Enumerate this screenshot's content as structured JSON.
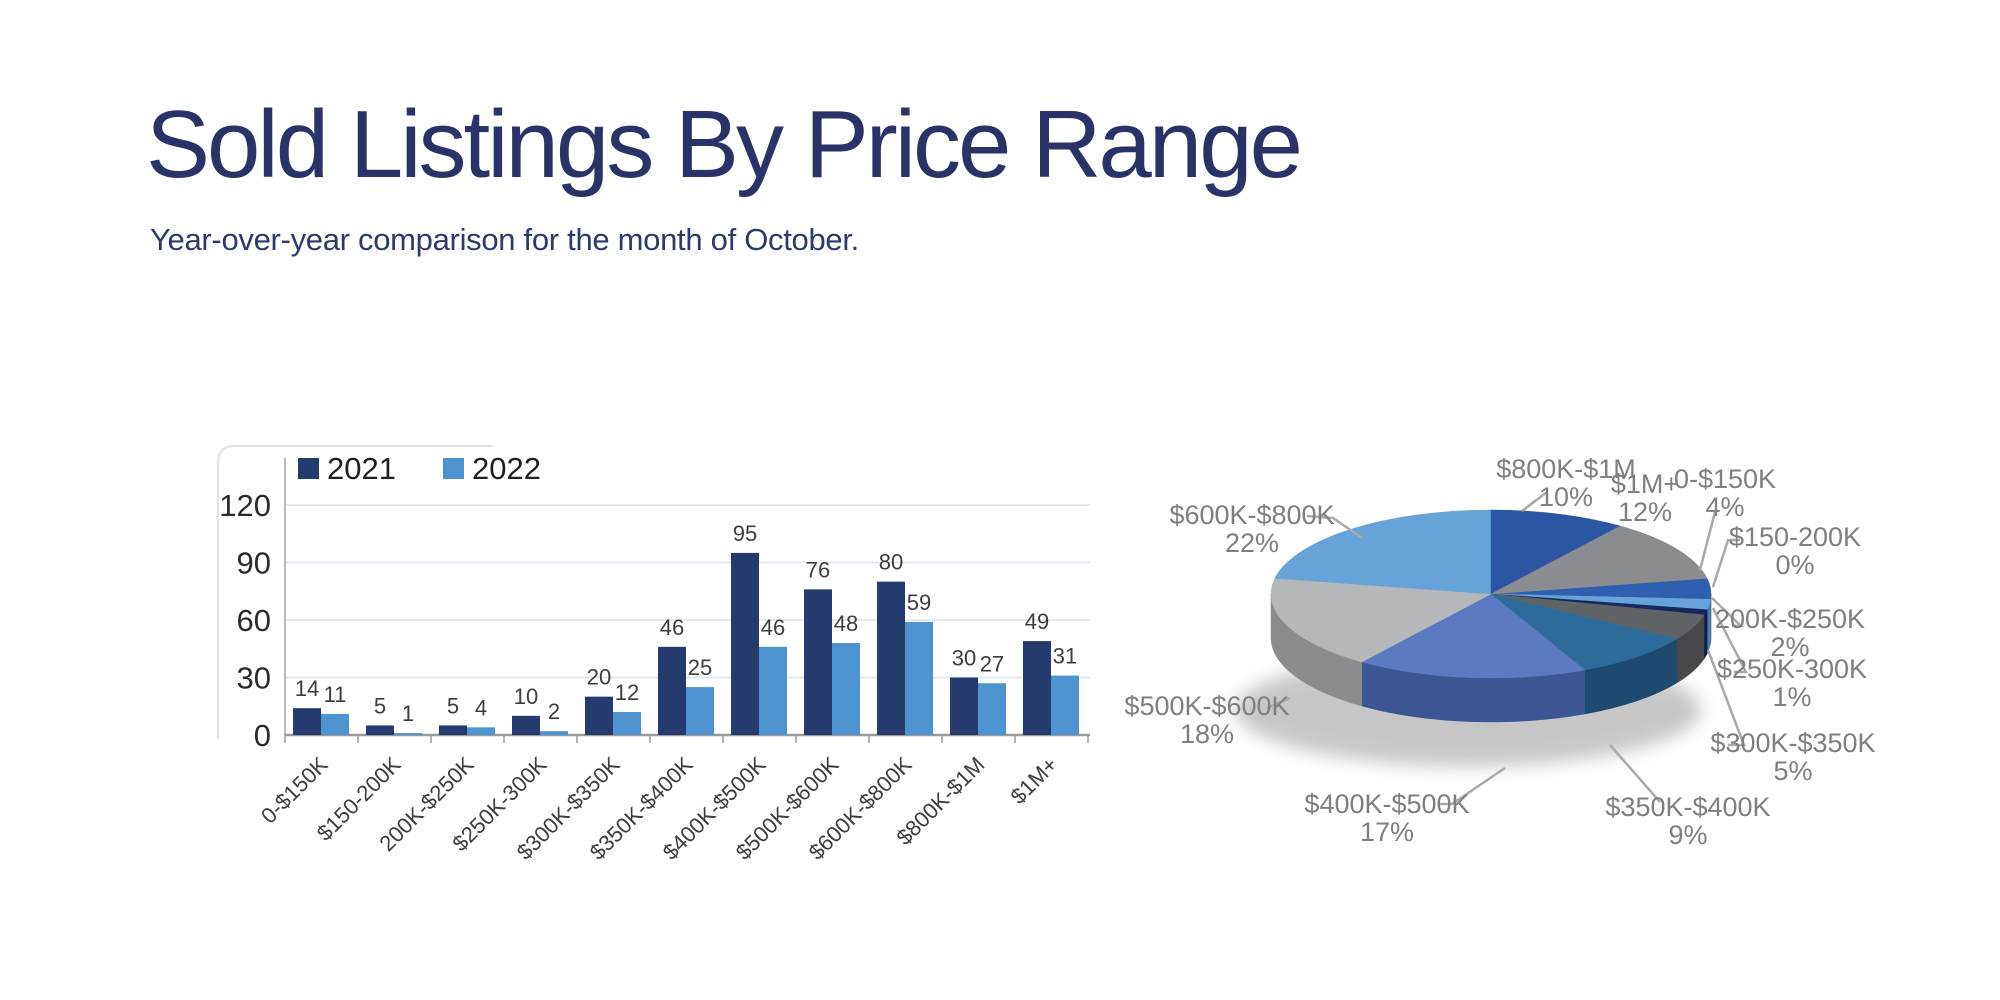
{
  "page": {
    "title": "Sold Listings By Price Range",
    "subtitle": "Year-over-year comparison for the month of October."
  },
  "colors": {
    "title": "#2a3268",
    "subtitle": "#2e3a6e",
    "axis_line": "#a3a3a3",
    "baseline": "#9b9b9b",
    "gridline": "#dce4ef",
    "tick_text": "#2b2b2b",
    "value_text": "#3d3d3d",
    "legend_text": "#1f1f1f",
    "pie_label_text": "#7f7f7f",
    "leader_line": "#a9a9a9",
    "card_border": "#e4e4e4",
    "shadow": "#8f8f8f"
  },
  "chart_data": [
    {
      "type": "bar",
      "title": "",
      "categories": [
        "0-$150K",
        "$150-200K",
        "200K-$250K",
        "$250K-300K",
        "$300K-$350K",
        "$350K-$400K",
        "$400K-$500K",
        "$500K-$600K",
        "$600K-$800K",
        "$800K-$1M",
        "$1M+"
      ],
      "series": [
        {
          "name": "2021",
          "color": "#253a6d",
          "values": [
            14,
            5,
            5,
            10,
            20,
            46,
            95,
            76,
            80,
            30,
            49
          ]
        },
        {
          "name": "2022",
          "color": "#4e94d0",
          "values": [
            11,
            1,
            4,
            2,
            12,
            25,
            46,
            48,
            59,
            27,
            31
          ]
        }
      ],
      "ylim": [
        0,
        140
      ],
      "yticks": [
        0,
        30,
        60,
        90,
        120
      ],
      "grid": true,
      "legend_position": "top-left",
      "value_labels": true
    },
    {
      "type": "pie",
      "style": "3d",
      "start_angle_deg": 79.2,
      "slices": [
        {
          "label": "0-$150K",
          "pct": 4,
          "color": "#2f5fae",
          "side": "#20447f"
        },
        {
          "label": "$150-200K",
          "pct": 0,
          "color": "#9dc3e6",
          "side": "#6f9cc4"
        },
        {
          "label": "200K-$250K",
          "pct": 2,
          "color": "#68a2da",
          "side": "#4a7cab"
        },
        {
          "label": "$250K-300K",
          "pct": 1,
          "color": "#16285c",
          "side": "#0f1c40"
        },
        {
          "label": "$300K-$350K",
          "pct": 5,
          "color": "#606366",
          "side": "#46484b"
        },
        {
          "label": "$350K-$400K",
          "pct": 9,
          "color": "#2d6b99",
          "side": "#1d4a6e"
        },
        {
          "label": "$400K-$500K",
          "pct": 17,
          "color": "#5b7ac2",
          "side": "#3c5593"
        },
        {
          "label": "$500K-$600K",
          "pct": 18,
          "color": "#b6b7b9",
          "side": "#8b8c8e"
        },
        {
          "label": "$600K-$800K",
          "pct": 22,
          "color": "#65a3d8",
          "side": "#4679a6"
        },
        {
          "label": "$800K-$1M",
          "pct": 10,
          "color": "#2c56a3",
          "side": "#1d3a74"
        },
        {
          "label": "$1M+",
          "pct": 12,
          "color": "#8a8c8f",
          "side": "#6a6c6f"
        }
      ]
    }
  ]
}
